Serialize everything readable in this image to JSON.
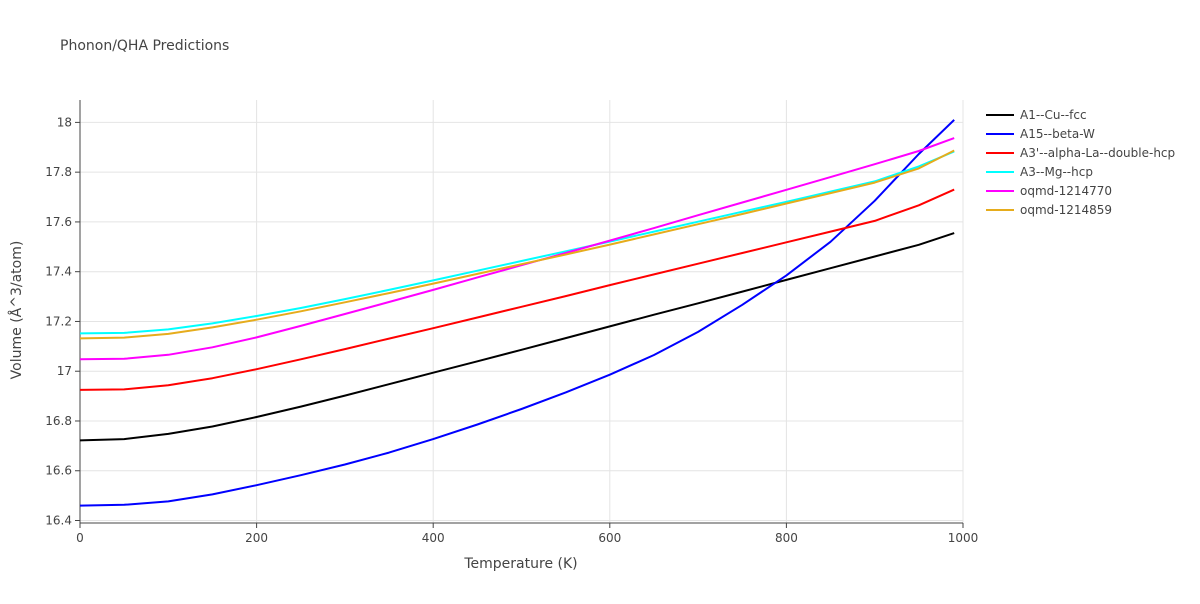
{
  "chart_data": {
    "type": "line",
    "title": "Phonon/QHA Predictions",
    "xlabel": "Temperature (K)",
    "ylabel": "Volume (Å^3/atom)",
    "xlim": [
      0,
      1000
    ],
    "ylim": [
      16.39,
      18.09
    ],
    "xticks": [
      0,
      200,
      400,
      600,
      800,
      1000
    ],
    "yticks": [
      16.4,
      16.6,
      16.8,
      17,
      17.2,
      17.4,
      17.6,
      17.8,
      18
    ],
    "xtick_labels": [
      "0",
      "200",
      "400",
      "600",
      "800",
      "1000"
    ],
    "ytick_labels": [
      "16.4",
      "16.6",
      "16.8",
      "17",
      "17.2",
      "17.4",
      "17.6",
      "17.8",
      "18"
    ],
    "grid": true,
    "legend_position": "right",
    "x": [
      0,
      50,
      100,
      150,
      200,
      250,
      300,
      350,
      400,
      450,
      500,
      550,
      600,
      650,
      700,
      750,
      800,
      850,
      900,
      950,
      990
    ],
    "series": [
      {
        "name": "A1--Cu--fcc",
        "color": "#000000",
        "values": [
          16.722,
          16.727,
          16.748,
          16.778,
          16.816,
          16.858,
          16.902,
          16.948,
          16.994,
          17.04,
          17.086,
          17.133,
          17.18,
          17.227,
          17.273,
          17.32,
          17.367,
          17.414,
          17.461,
          17.508,
          17.555
        ]
      },
      {
        "name": "A15--beta-W",
        "color": "#0000ff",
        "values": [
          16.46,
          16.463,
          16.477,
          16.505,
          16.542,
          16.582,
          16.625,
          16.673,
          16.727,
          16.786,
          16.848,
          16.915,
          16.986,
          17.065,
          17.158,
          17.267,
          17.385,
          17.52,
          17.685,
          17.873,
          18.01
        ]
      },
      {
        "name": "A3'--alpha-La--double-hcp",
        "color": "#ff0000",
        "values": [
          16.925,
          16.927,
          16.944,
          16.972,
          17.008,
          17.048,
          17.089,
          17.131,
          17.173,
          17.216,
          17.259,
          17.302,
          17.346,
          17.389,
          17.432,
          17.475,
          17.518,
          17.561,
          17.604,
          17.667,
          17.73
        ]
      },
      {
        "name": "A3--Mg--hcp",
        "color": "#00ffff",
        "values": [
          17.152,
          17.154,
          17.168,
          17.192,
          17.222,
          17.254,
          17.29,
          17.327,
          17.365,
          17.404,
          17.443,
          17.482,
          17.521,
          17.561,
          17.601,
          17.641,
          17.681,
          17.722,
          17.763,
          17.823,
          17.883
        ]
      },
      {
        "name": "oqmd-1214770",
        "color": "#ff00ff",
        "values": [
          17.048,
          17.05,
          17.066,
          17.096,
          17.136,
          17.182,
          17.23,
          17.278,
          17.327,
          17.377,
          17.426,
          17.475,
          17.525,
          17.575,
          17.627,
          17.678,
          17.729,
          17.78,
          17.832,
          17.885,
          17.937
        ]
      },
      {
        "name": "oqmd-1214859",
        "color": "#e6ac1c",
        "values": [
          17.132,
          17.135,
          17.15,
          17.176,
          17.207,
          17.241,
          17.277,
          17.314,
          17.352,
          17.391,
          17.43,
          17.469,
          17.509,
          17.55,
          17.591,
          17.632,
          17.674,
          17.716,
          17.758,
          17.815,
          17.887
        ]
      }
    ]
  }
}
